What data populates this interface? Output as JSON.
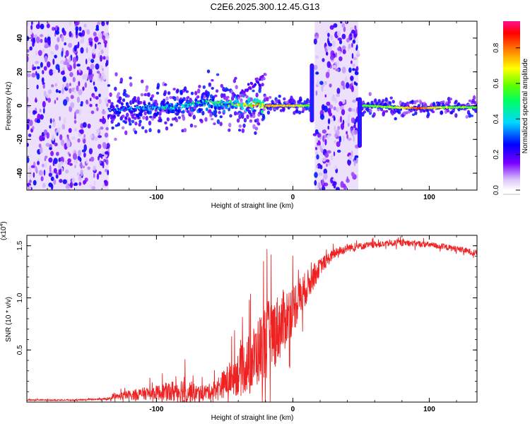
{
  "figure_title": "C2E6.2025.300.12.45.G13",
  "chart_data": [
    {
      "type": "heatmap",
      "title": "C2E6.2025.300.12.45.G13",
      "xlabel": "Height of straight line (km)",
      "ylabel": "Frequency (Hz)",
      "xlim": [
        -195,
        135
      ],
      "ylim": [
        -50,
        50
      ],
      "x_ticks": [
        -100,
        0,
        100
      ],
      "x_tick_labels": [
        "-100",
        "0",
        "100"
      ],
      "y_ticks": [
        -40,
        -20,
        0,
        20,
        40
      ],
      "y_tick_labels": [
        "-40",
        "-20",
        "0",
        "20",
        "40"
      ],
      "colorbar": {
        "label": "Normalized spectral amplitude",
        "range": [
          0,
          0.95
        ],
        "ticks": [
          0.0,
          0.2,
          0.4,
          0.6,
          0.8
        ],
        "tick_labels": [
          "0.0",
          "0.2",
          "0.4",
          "0.6",
          "0.8"
        ],
        "colormap": "rainbow (white-violet-blue-cyan-green-yellow-red-magenta)"
      },
      "noise_regions_km": [
        [
          -195,
          -135
        ],
        [
          16,
          48
        ]
      ],
      "signal_trace": [
        {
          "x": -135,
          "freq": -2,
          "amp": 0.3
        },
        {
          "x": -120,
          "freq": -2,
          "amp": 0.35
        },
        {
          "x": -100,
          "freq": -1,
          "amp": 0.4
        },
        {
          "x": -80,
          "freq": 0,
          "amp": 0.45
        },
        {
          "x": -65,
          "freq": 2,
          "amp": 0.45
        },
        {
          "x": -50,
          "freq": 1,
          "amp": 0.5
        },
        {
          "x": -35,
          "freq": 0.5,
          "amp": 0.6
        },
        {
          "x": -20,
          "freq": 0,
          "amp": 0.8
        },
        {
          "x": 0,
          "freq": 0,
          "amp": 0.75
        },
        {
          "x": 12,
          "freq": 0,
          "amp": 0.6
        },
        {
          "x": 52,
          "freq": 0,
          "amp": 0.6
        },
        {
          "x": 75,
          "freq": -1,
          "amp": 0.65
        },
        {
          "x": 93,
          "freq": -1.5,
          "amp": 0.9
        },
        {
          "x": 110,
          "freq": -1,
          "amp": 0.65
        },
        {
          "x": 135,
          "freq": -1,
          "amp": 0.6
        }
      ],
      "features": [
        {
          "name": "upper branch",
          "x": [
            -40,
            -20
          ],
          "freq": [
            5,
            18
          ]
        },
        {
          "name": "vertical streak",
          "x": 14,
          "freq": [
            -10,
            25
          ]
        },
        {
          "name": "vertical streak",
          "x": 49,
          "freq": [
            -25,
            5
          ]
        }
      ]
    },
    {
      "type": "line",
      "xlabel": "Height of straight line (km)",
      "ylabel": "SNR (10 * v/v)",
      "y_multiplier_label": "(x10",
      "y_multiplier_exp": "4",
      "y_multiplier_suffix": ")",
      "xlim": [
        -195,
        135
      ],
      "ylim": [
        0,
        1.6
      ],
      "x_ticks": [
        -100,
        0,
        100
      ],
      "x_tick_labels": [
        "-100",
        "0",
        "100"
      ],
      "y_ticks": [
        0.5,
        1.0,
        1.5
      ],
      "y_tick_labels": [
        "0.5",
        "1.0",
        "1.5"
      ],
      "color": "#ee2222",
      "series": [
        {
          "name": "SNR",
          "x": [
            -195,
            -160,
            -135,
            -125,
            -110,
            -100,
            -90,
            -80,
            -70,
            -60,
            -50,
            -40,
            -30,
            -20,
            -10,
            0,
            10,
            20,
            30,
            40,
            60,
            80,
            100,
            120,
            135
          ],
          "mean": [
            0.02,
            0.02,
            0.03,
            0.06,
            0.08,
            0.09,
            0.1,
            0.11,
            0.09,
            0.1,
            0.18,
            0.28,
            0.4,
            0.58,
            0.72,
            0.9,
            1.1,
            1.3,
            1.42,
            1.48,
            1.51,
            1.53,
            1.51,
            1.47,
            1.43
          ],
          "spread": [
            0.005,
            0.005,
            0.01,
            0.04,
            0.06,
            0.07,
            0.1,
            0.14,
            0.07,
            0.08,
            0.14,
            0.22,
            0.3,
            0.38,
            0.33,
            0.25,
            0.16,
            0.08,
            0.05,
            0.04,
            0.03,
            0.03,
            0.03,
            0.03,
            0.03
          ]
        }
      ]
    }
  ]
}
